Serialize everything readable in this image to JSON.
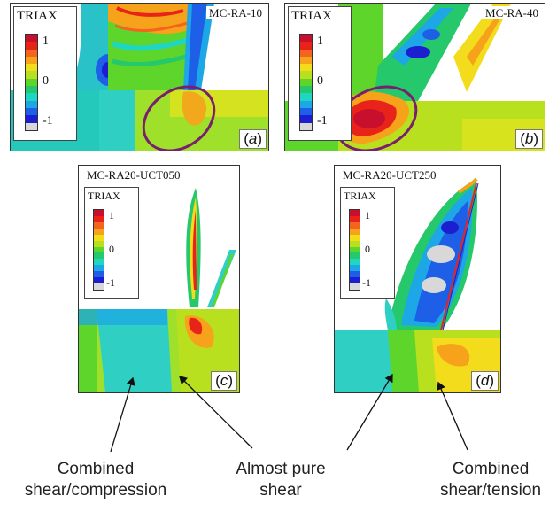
{
  "panels": [
    {
      "id": "a",
      "title": "MC-RA-10",
      "letter": "a",
      "legend_title": "TRIAX",
      "ticks": [
        "1",
        "0",
        "-1"
      ]
    },
    {
      "id": "b",
      "title": "MC-RA-40",
      "letter": "b",
      "legend_title": "TRIAX",
      "ticks": [
        "1",
        "0",
        "-1"
      ]
    },
    {
      "id": "c",
      "title": "MC-RA20-UCT050",
      "letter": "c",
      "legend_title": "TRIAX",
      "ticks": [
        "1",
        "0",
        "-1"
      ]
    },
    {
      "id": "d",
      "title": "MC-RA20-UCT250",
      "letter": "d",
      "legend_title": "TRIAX",
      "ticks": [
        "1",
        "0",
        "-1"
      ]
    }
  ],
  "colorbar": [
    "#c8102e",
    "#e8231a",
    "#f5641e",
    "#f7a21b",
    "#f2dc1c",
    "#b9e01f",
    "#5ed52b",
    "#25c86a",
    "#1fd6c2",
    "#1ea7e6",
    "#1e5fe8",
    "#1b1fcf",
    "#d8d8d8"
  ],
  "annotations": {
    "left": [
      "Combined",
      "shear/compression"
    ],
    "middle": [
      "Almost pure",
      "shear"
    ],
    "right": [
      "Combined",
      "shear/tension"
    ]
  }
}
